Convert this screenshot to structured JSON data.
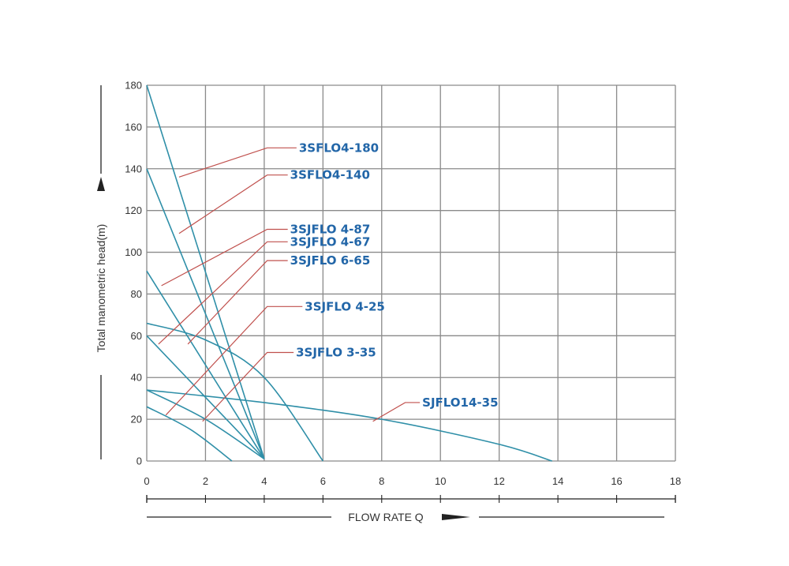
{
  "chart_data": {
    "type": "line",
    "xlabel": "FLOW RATE Q",
    "ylabel": "Total manometric head(m)",
    "xlim": [
      0,
      18
    ],
    "ylim": [
      0,
      180
    ],
    "x_ticks": [
      "0",
      "2",
      "4",
      "6",
      "8",
      "10",
      "12",
      "14",
      "16",
      "18"
    ],
    "y_ticks": [
      "0",
      "20",
      "40",
      "60",
      "80",
      "100",
      "120",
      "140",
      "160",
      "180"
    ],
    "grid": true,
    "curve_color": "#2f8fa8",
    "leader_color": "#c0504d",
    "label_color": "#2266a8",
    "series": [
      {
        "name": "3SFLO4-180",
        "points": [
          [
            0,
            180
          ],
          [
            4,
            1
          ]
        ],
        "label_anchor": [
          1.1,
          136
        ],
        "label_knee": [
          4.1,
          150
        ],
        "label_end": [
          5.1,
          150
        ]
      },
      {
        "name": "3SFLO4-140",
        "points": [
          [
            0,
            140
          ],
          [
            4,
            1
          ]
        ],
        "label_anchor": [
          1.1,
          109
        ],
        "label_knee": [
          4.1,
          137
        ],
        "label_end": [
          4.8,
          137
        ]
      },
      {
        "name": "3SJFLO 4-87",
        "points": [
          [
            0,
            91
          ],
          [
            4,
            1
          ]
        ],
        "label_anchor": [
          0.5,
          84
        ],
        "label_knee": [
          4.1,
          111
        ],
        "label_end": [
          4.8,
          111
        ]
      },
      {
        "name": "3SJFLO 4-67",
        "points": [
          [
            0,
            60
          ],
          [
            4,
            1
          ]
        ],
        "label_anchor": [
          0.4,
          56
        ],
        "label_knee": [
          4.1,
          105
        ],
        "label_end": [
          4.8,
          105
        ]
      },
      {
        "name": "3SJFLO 6-65",
        "points": [
          [
            0,
            66
          ],
          [
            2,
            58
          ],
          [
            4,
            40
          ],
          [
            6,
            0
          ]
        ],
        "label_anchor": [
          1.4,
          56
        ],
        "label_knee": [
          4.1,
          96
        ],
        "label_end": [
          4.8,
          96
        ]
      },
      {
        "name": "3SJFLO 4-25",
        "points": [
          [
            0,
            26
          ],
          [
            1.5,
            15
          ],
          [
            2.9,
            0
          ]
        ],
        "label_anchor": [
          0.65,
          22
        ],
        "label_knee": [
          4.1,
          74
        ],
        "label_end": [
          5.3,
          74
        ]
      },
      {
        "name": "3SJFLO 3-35",
        "points": [
          [
            0,
            34
          ],
          [
            2,
            20
          ],
          [
            4,
            1
          ]
        ],
        "label_anchor": [
          1.9,
          19
        ],
        "label_knee": [
          4.1,
          52
        ],
        "label_end": [
          5,
          52
        ]
      },
      {
        "name": "SJFLO14-35",
        "points": [
          [
            0,
            34
          ],
          [
            4,
            28
          ],
          [
            8,
            20
          ],
          [
            12,
            8
          ],
          [
            13.8,
            0
          ]
        ],
        "label_anchor": [
          7.7,
          19
        ],
        "label_knee": [
          8.8,
          28
        ],
        "label_end": [
          9.3,
          28
        ]
      }
    ]
  }
}
